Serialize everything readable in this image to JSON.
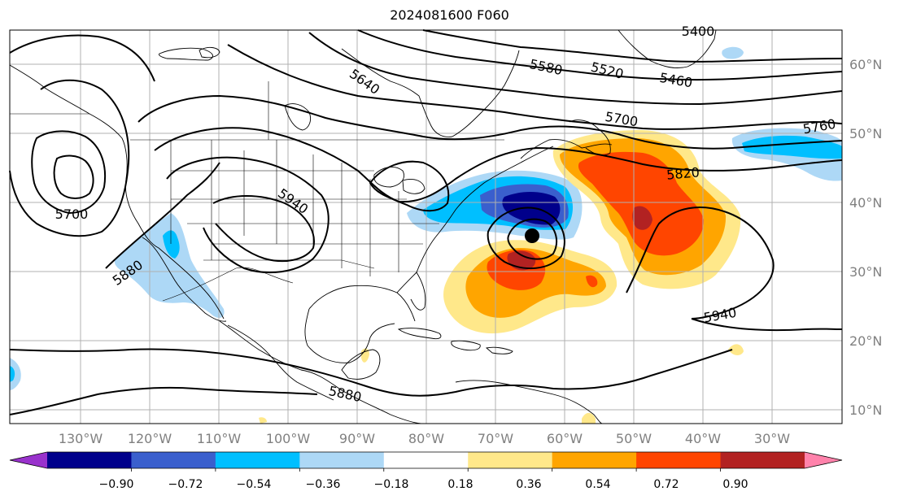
{
  "title": "2024081600 F060",
  "longitude_labels": [
    "130°W",
    "120°W",
    "110°W",
    "100°W",
    "90°W",
    "80°W",
    "70°W",
    "60°W",
    "50°W",
    "40°W",
    "30°W"
  ],
  "latitude_labels": [
    "60°N",
    "50°N",
    "40°N",
    "30°N",
    "20°N",
    "10°N"
  ],
  "contour_labels": [
    "5400",
    "5460",
    "5520",
    "5580",
    "5640",
    "5700",
    "5700",
    "5760",
    "5820",
    "5880",
    "5880",
    "5940",
    "5940"
  ],
  "colorbar": {
    "ticks": [
      "−0.90",
      "−0.72",
      "−0.54",
      "−0.36",
      "−0.18",
      "0.18",
      "0.36",
      "0.54",
      "0.72",
      "0.90"
    ],
    "colors": [
      "#9932cc",
      "#00008b",
      "#3a5fcd",
      "#00bfff",
      "#add8f6",
      "#ffffff",
      "#ffe88a",
      "#ffa500",
      "#ff4500",
      "#b22222",
      "#ff82ab"
    ]
  },
  "storm_marker": "black-dot"
}
